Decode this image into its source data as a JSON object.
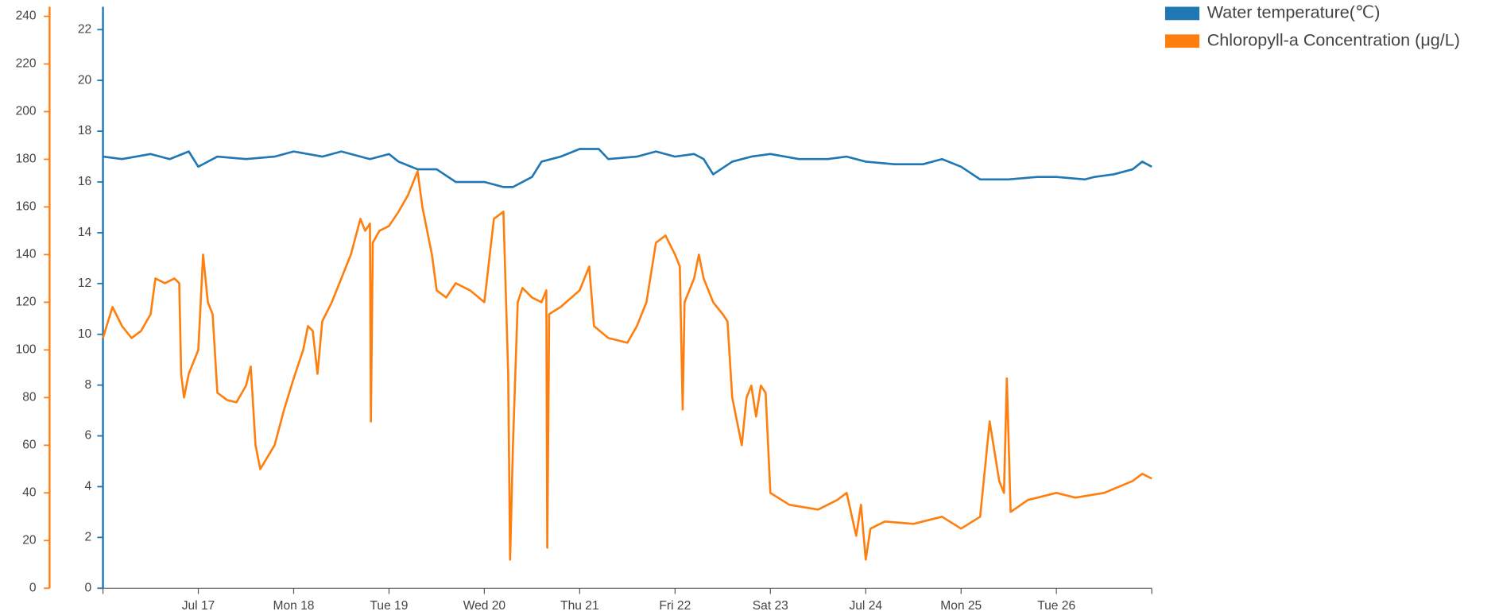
{
  "chart_data": {
    "type": "line",
    "xlim": [
      16,
      27
    ],
    "xticks": [
      {
        "value": 17,
        "label": "Jul 17"
      },
      {
        "value": 18,
        "label": "Mon 18"
      },
      {
        "value": 19,
        "label": "Tue 19"
      },
      {
        "value": 20,
        "label": "Wed 20"
      },
      {
        "value": 21,
        "label": "Thu 21"
      },
      {
        "value": 22,
        "label": "Fri 22"
      },
      {
        "value": 23,
        "label": "Sat 23"
      },
      {
        "value": 24,
        "label": "Jul 24"
      },
      {
        "value": 25,
        "label": "Mon 25"
      },
      {
        "value": 26,
        "label": "Tue 26"
      }
    ],
    "ylim": [
      0,
      22.9
    ],
    "yticks": [
      0,
      2,
      4,
      6,
      8,
      10,
      12,
      14,
      16,
      18,
      20,
      22
    ],
    "y2lim": [
      0,
      244
    ],
    "y2ticks": [
      0,
      20,
      40,
      60,
      80,
      100,
      120,
      140,
      160,
      180,
      200,
      220,
      240
    ],
    "legend": "top-right",
    "series": [
      {
        "name": "Water temperature(℃)",
        "color": "#1f77b4",
        "x": [
          16.0,
          16.2,
          16.5,
          16.7,
          16.9,
          17.0,
          17.2,
          17.5,
          17.8,
          18.0,
          18.3,
          18.5,
          18.8,
          19.0,
          19.1,
          19.3,
          19.5,
          19.7,
          20.0,
          20.2,
          20.3,
          20.5,
          20.6,
          20.8,
          21.0,
          21.2,
          21.3,
          21.6,
          21.8,
          22.0,
          22.2,
          22.3,
          22.4,
          22.6,
          22.8,
          23.0,
          23.3,
          23.6,
          23.8,
          24.0,
          24.3,
          24.6,
          24.8,
          25.0,
          25.2,
          25.5,
          25.8,
          26.0,
          26.3,
          26.4,
          26.6,
          26.8,
          26.9,
          27.0
        ],
        "values": [
          17.0,
          16.9,
          17.1,
          16.9,
          17.2,
          16.6,
          17.0,
          16.9,
          17.0,
          17.2,
          17.0,
          17.2,
          16.9,
          17.1,
          16.8,
          16.5,
          16.5,
          16.0,
          16.0,
          15.8,
          15.8,
          16.2,
          16.8,
          17.0,
          17.3,
          17.3,
          16.9,
          17.0,
          17.2,
          17.0,
          17.1,
          16.9,
          16.3,
          16.8,
          17.0,
          17.1,
          16.9,
          16.9,
          17.0,
          16.8,
          16.7,
          16.7,
          16.9,
          16.6,
          16.1,
          16.1,
          16.2,
          16.2,
          16.1,
          16.2,
          16.3,
          16.5,
          16.8,
          16.6
        ]
      },
      {
        "name": "Chloropyll-a Concentration (μg/L)",
        "color": "#ff7f0e",
        "axis": "y2",
        "x": [
          16.0,
          16.1,
          16.2,
          16.3,
          16.4,
          16.5,
          16.55,
          16.65,
          16.75,
          16.8,
          16.82,
          16.85,
          16.9,
          17.0,
          17.05,
          17.1,
          17.15,
          17.2,
          17.3,
          17.4,
          17.5,
          17.55,
          17.6,
          17.65,
          17.8,
          17.9,
          18.0,
          18.1,
          18.15,
          18.2,
          18.25,
          18.3,
          18.4,
          18.5,
          18.6,
          18.7,
          18.75,
          18.8,
          18.81,
          18.83,
          18.9,
          19.0,
          19.1,
          19.2,
          19.3,
          19.35,
          19.45,
          19.5,
          19.6,
          19.7,
          19.85,
          20.0,
          20.1,
          20.2,
          20.25,
          20.27,
          20.3,
          20.35,
          20.4,
          20.5,
          20.6,
          20.65,
          20.66,
          20.68,
          20.8,
          21.0,
          21.1,
          21.15,
          21.3,
          21.5,
          21.6,
          21.7,
          21.8,
          21.9,
          22.0,
          22.05,
          22.08,
          22.1,
          22.2,
          22.25,
          22.3,
          22.4,
          22.5,
          22.55,
          22.6,
          22.65,
          22.7,
          22.75,
          22.8,
          22.85,
          22.9,
          22.95,
          23.0,
          23.2,
          23.5,
          23.7,
          23.8,
          23.9,
          23.95,
          24.0,
          24.05,
          24.2,
          24.5,
          24.8,
          25.0,
          25.2,
          25.3,
          25.4,
          25.45,
          25.48,
          25.52,
          25.7,
          26.0,
          26.2,
          26.5,
          26.8,
          26.9,
          27.0
        ],
        "values": [
          105,
          118,
          110,
          105,
          108,
          115,
          130,
          128,
          130,
          128,
          90,
          80,
          90,
          100,
          140,
          120,
          115,
          82,
          79,
          78,
          85,
          93,
          60,
          50,
          60,
          75,
          88,
          100,
          110,
          108,
          90,
          112,
          120,
          130,
          140,
          155,
          150,
          153,
          70,
          145,
          150,
          152,
          158,
          165,
          175,
          160,
          140,
          125,
          122,
          128,
          125,
          120,
          155,
          158,
          90,
          12,
          60,
          120,
          126,
          122,
          120,
          125,
          17,
          115,
          118,
          125,
          135,
          110,
          105,
          103,
          110,
          120,
          145,
          148,
          140,
          135,
          75,
          120,
          130,
          140,
          130,
          120,
          115,
          112,
          80,
          70,
          60,
          80,
          85,
          72,
          85,
          82,
          40,
          35,
          33,
          37,
          40,
          22,
          35,
          12,
          25,
          28,
          27,
          30,
          25,
          30,
          70,
          45,
          40,
          88,
          32,
          37,
          40,
          38,
          40,
          45,
          48,
          46
        ]
      }
    ]
  }
}
